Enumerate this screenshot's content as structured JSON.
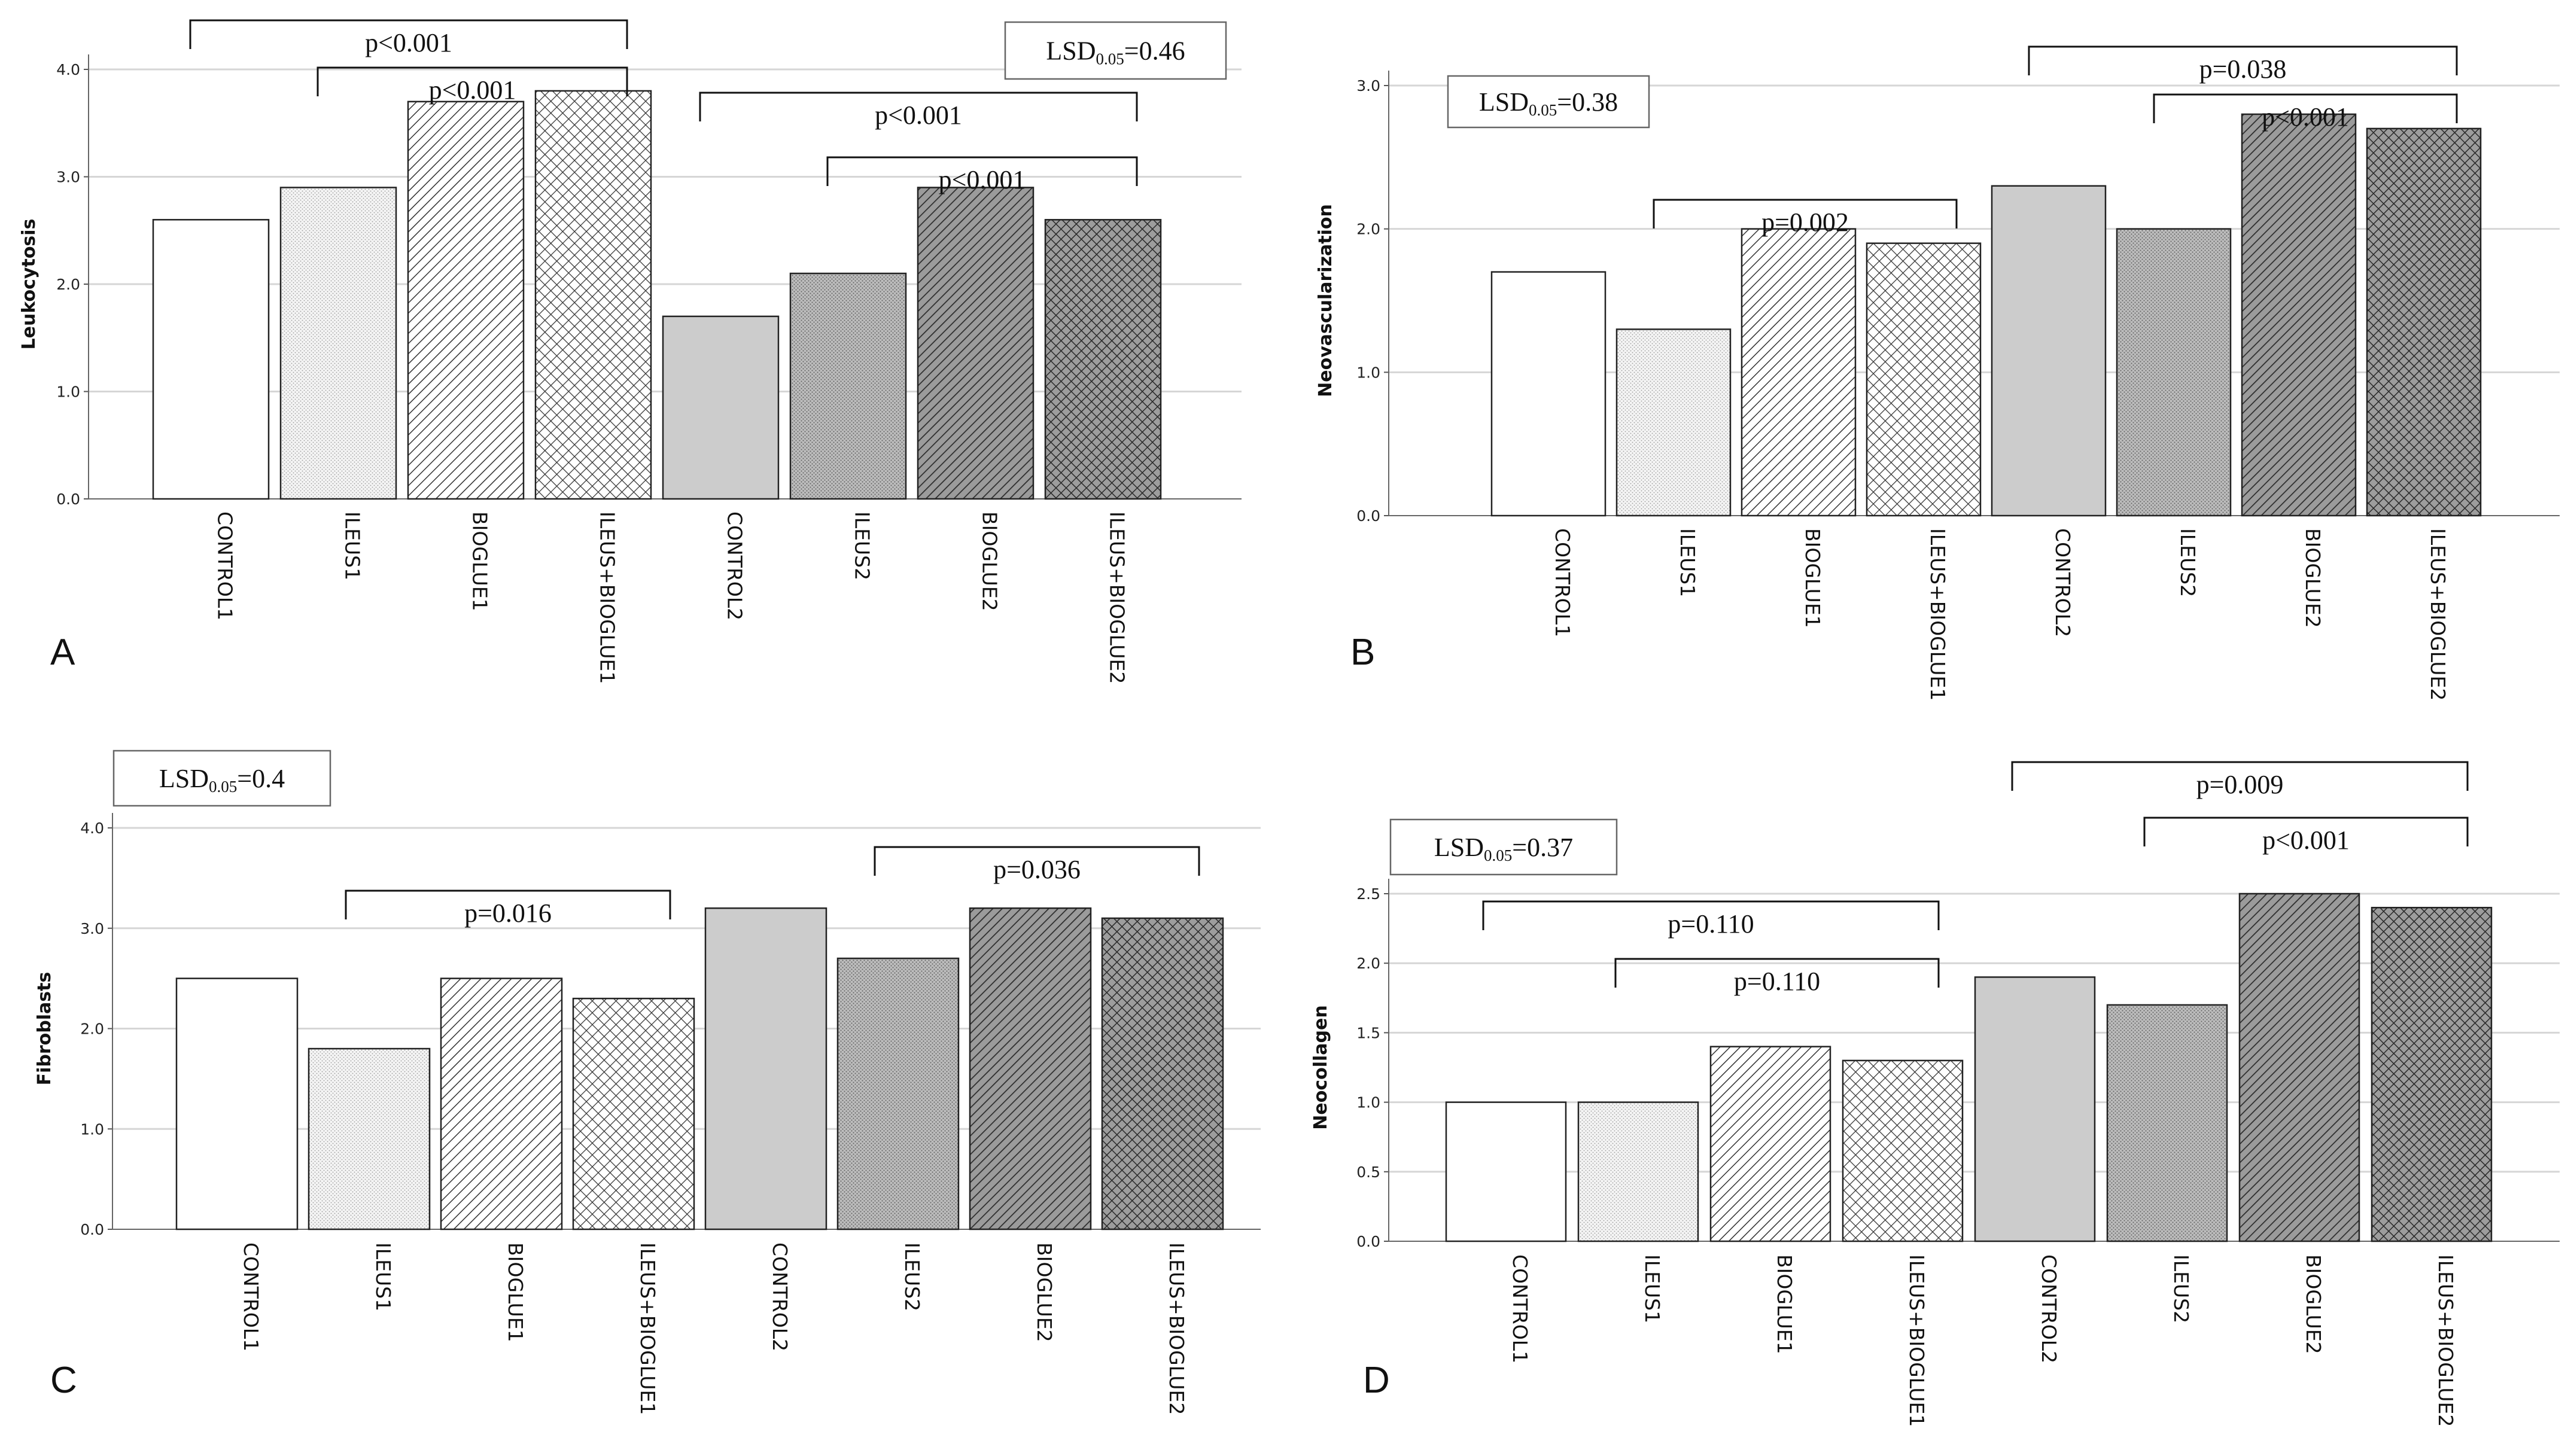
{
  "chart_data": [
    {
      "type": "bar",
      "panel_label": "A",
      "ylabel": "Leukocytosis",
      "ylim": [
        0,
        4.0
      ],
      "yticks": [
        "0.0",
        "1.0",
        "2.0",
        "3.0",
        "4.0"
      ],
      "grid": true,
      "categories": [
        "CONTROL1",
        "ILEUS1",
        "BIOGLUE1",
        "ILEUS+BIOGLUE1",
        "CONTROL2",
        "ILEUS2",
        "BIOGLUE2",
        "ILEUS+BIOGLUE2"
      ],
      "values": [
        2.6,
        2.9,
        3.7,
        3.8,
        1.7,
        2.1,
        2.9,
        2.6
      ],
      "lsd": {
        "prefix": "LSD",
        "sub": "0.05",
        "value": "=0.46"
      },
      "comparisons": [
        {
          "from": 0,
          "to": 3,
          "label": "p<0.001"
        },
        {
          "from": 1,
          "to": 3,
          "label": "p<0.001"
        },
        {
          "from": 4,
          "to": 7,
          "label": "p<0.001"
        },
        {
          "from": 5,
          "to": 7,
          "label": "p<0.001"
        }
      ]
    },
    {
      "type": "bar",
      "panel_label": "B",
      "ylabel": "Neovascularization",
      "ylim": [
        0,
        3.0
      ],
      "yticks": [
        "0.0",
        "1.0",
        "2.0",
        "3.0"
      ],
      "grid": true,
      "categories": [
        "CONTROL1",
        "ILEUS1",
        "BIOGLUE1",
        "ILEUS+BIOGLUE1",
        "CONTROL2",
        "ILEUS2",
        "BIOGLUE2",
        "ILEUS+BIOGLUE2"
      ],
      "values": [
        1.7,
        1.3,
        2.0,
        1.9,
        2.3,
        2.0,
        2.8,
        2.7
      ],
      "lsd": {
        "prefix": "LSD",
        "sub": "0.05",
        "value": "=0.38"
      },
      "comparisons": [
        {
          "from": 1,
          "to": 3,
          "label": "p=0.002"
        },
        {
          "from": 4,
          "to": 7,
          "label": "p=0.038"
        },
        {
          "from": 5,
          "to": 7,
          "label": "p<0.001"
        }
      ]
    },
    {
      "type": "bar",
      "panel_label": "C",
      "ylabel": "Fibroblasts",
      "ylim": [
        0,
        4.0
      ],
      "yticks": [
        "0.0",
        "1.0",
        "2.0",
        "3.0",
        "4.0"
      ],
      "grid": true,
      "categories": [
        "CONTROL1",
        "ILEUS1",
        "BIOGLUE1",
        "ILEUS+BIOGLUE1",
        "CONTROL2",
        "ILEUS2",
        "BIOGLUE2",
        "ILEUS+BIOGLUE2"
      ],
      "values": [
        2.5,
        1.8,
        2.5,
        2.3,
        3.2,
        2.7,
        3.2,
        3.1
      ],
      "lsd": {
        "prefix": "LSD",
        "sub": "0.05",
        "value": "=0.4"
      },
      "comparisons": [
        {
          "from": 1,
          "to": 3,
          "label": "p=0.016"
        },
        {
          "from": 5,
          "to": 7,
          "label": "p=0.036"
        }
      ]
    },
    {
      "type": "bar",
      "panel_label": "D",
      "ylabel": "Neocollagen",
      "ylim": [
        0,
        2.5
      ],
      "yticks": [
        "0.0",
        "0.5",
        "1.0",
        "1.5",
        "2.0",
        "2.5"
      ],
      "grid": true,
      "categories": [
        "CONTROL1",
        "ILEUS1",
        "BIOGLUE1",
        "ILEUS+BIOGLUE1",
        "CONTROL2",
        "ILEUS2",
        "BIOGLUE2",
        "ILEUS+BIOGLUE2"
      ],
      "values": [
        1.0,
        1.0,
        1.4,
        1.3,
        1.9,
        1.7,
        2.5,
        2.4
      ],
      "lsd": {
        "prefix": "LSD",
        "sub": "0.05",
        "value": "=0.37"
      },
      "comparisons": [
        {
          "from": 0,
          "to": 3,
          "label": "p=0.110"
        },
        {
          "from": 1,
          "to": 3,
          "label": "p=0.110"
        },
        {
          "from": 4,
          "to": 7,
          "label": "p=0.009"
        },
        {
          "from": 5,
          "to": 7,
          "label": "p<0.001"
        }
      ]
    }
  ]
}
